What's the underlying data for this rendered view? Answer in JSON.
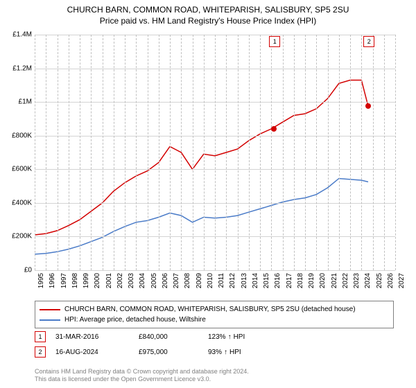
{
  "title_line1": "CHURCH BARN, COMMON ROAD, WHITEPARISH, SALISBURY, SP5 2SU",
  "title_line2": "Price paid vs. HM Land Registry's House Price Index (HPI)",
  "chart": {
    "type": "line",
    "x_start": 1995,
    "x_end": 2027,
    "x_ticks": [
      1995,
      1996,
      1997,
      1998,
      1999,
      2000,
      2001,
      2002,
      2003,
      2004,
      2005,
      2006,
      2007,
      2008,
      2009,
      2010,
      2011,
      2012,
      2013,
      2014,
      2015,
      2016,
      2017,
      2018,
      2019,
      2020,
      2021,
      2022,
      2023,
      2024,
      2025,
      2026,
      2027
    ],
    "y_min": 0,
    "y_max": 1400000,
    "y_ticks": [
      {
        "v": 0,
        "label": "£0"
      },
      {
        "v": 200000,
        "label": "£200K"
      },
      {
        "v": 400000,
        "label": "£400K"
      },
      {
        "v": 600000,
        "label": "£600K"
      },
      {
        "v": 800000,
        "label": "£800K"
      },
      {
        "v": 1000000,
        "label": "£1M"
      },
      {
        "v": 1200000,
        "label": "£1.2M"
      },
      {
        "v": 1400000,
        "label": "£1.4M"
      }
    ],
    "grid_color": "#d3d3d3",
    "vline_color": "#c0c0c0",
    "background_color": "#ffffff",
    "line_width": 1.5,
    "series": [
      {
        "name": "property",
        "color": "#d30000",
        "label": "CHURCH BARN, COMMON ROAD, WHITEPARISH, SALISBURY, SP5 2SU (detached house)",
        "points": [
          [
            1995,
            210000
          ],
          [
            1996,
            218000
          ],
          [
            1997,
            235000
          ],
          [
            1998,
            265000
          ],
          [
            1999,
            300000
          ],
          [
            2000,
            350000
          ],
          [
            2001,
            400000
          ],
          [
            2002,
            470000
          ],
          [
            2003,
            520000
          ],
          [
            2004,
            560000
          ],
          [
            2005,
            590000
          ],
          [
            2006,
            640000
          ],
          [
            2007,
            735000
          ],
          [
            2008,
            700000
          ],
          [
            2009,
            600000
          ],
          [
            2010,
            690000
          ],
          [
            2011,
            680000
          ],
          [
            2012,
            700000
          ],
          [
            2013,
            720000
          ],
          [
            2014,
            770000
          ],
          [
            2015,
            810000
          ],
          [
            2016,
            840000
          ],
          [
            2017,
            880000
          ],
          [
            2018,
            920000
          ],
          [
            2019,
            930000
          ],
          [
            2020,
            960000
          ],
          [
            2021,
            1020000
          ],
          [
            2022,
            1110000
          ],
          [
            2023,
            1130000
          ],
          [
            2024,
            1130000
          ],
          [
            2024.6,
            975000
          ]
        ]
      },
      {
        "name": "hpi",
        "color": "#4a7bc8",
        "label": "HPI: Average price, detached house, Wiltshire",
        "points": [
          [
            1995,
            95000
          ],
          [
            1996,
            100000
          ],
          [
            1997,
            110000
          ],
          [
            1998,
            125000
          ],
          [
            1999,
            145000
          ],
          [
            2000,
            170000
          ],
          [
            2001,
            195000
          ],
          [
            2002,
            230000
          ],
          [
            2003,
            260000
          ],
          [
            2004,
            285000
          ],
          [
            2005,
            295000
          ],
          [
            2006,
            315000
          ],
          [
            2007,
            340000
          ],
          [
            2008,
            325000
          ],
          [
            2009,
            285000
          ],
          [
            2010,
            315000
          ],
          [
            2011,
            310000
          ],
          [
            2012,
            315000
          ],
          [
            2013,
            325000
          ],
          [
            2014,
            345000
          ],
          [
            2015,
            365000
          ],
          [
            2016,
            385000
          ],
          [
            2017,
            405000
          ],
          [
            2018,
            420000
          ],
          [
            2019,
            430000
          ],
          [
            2020,
            450000
          ],
          [
            2021,
            490000
          ],
          [
            2022,
            545000
          ],
          [
            2023,
            540000
          ],
          [
            2024,
            535000
          ],
          [
            2024.6,
            525000
          ]
        ]
      }
    ],
    "markers": [
      {
        "n": "1",
        "x": 2016.25,
        "y": 840000,
        "color": "#d30000"
      },
      {
        "n": "2",
        "x": 2024.62,
        "y": 975000,
        "color": "#d30000"
      }
    ]
  },
  "sales": [
    {
      "n": "1",
      "date": "31-MAR-2016",
      "price": "£840,000",
      "hpi_pct": "123%",
      "hpi_dir": "↑",
      "hpi_label": "HPI",
      "color": "#d30000"
    },
    {
      "n": "2",
      "date": "16-AUG-2024",
      "price": "£975,000",
      "hpi_pct": "93%",
      "hpi_dir": "↑",
      "hpi_label": "HPI",
      "color": "#d30000"
    }
  ],
  "footer": {
    "line1": "Contains HM Land Registry data © Crown copyright and database right 2024.",
    "line2": "This data is licensed under the Open Government Licence v3.0."
  }
}
